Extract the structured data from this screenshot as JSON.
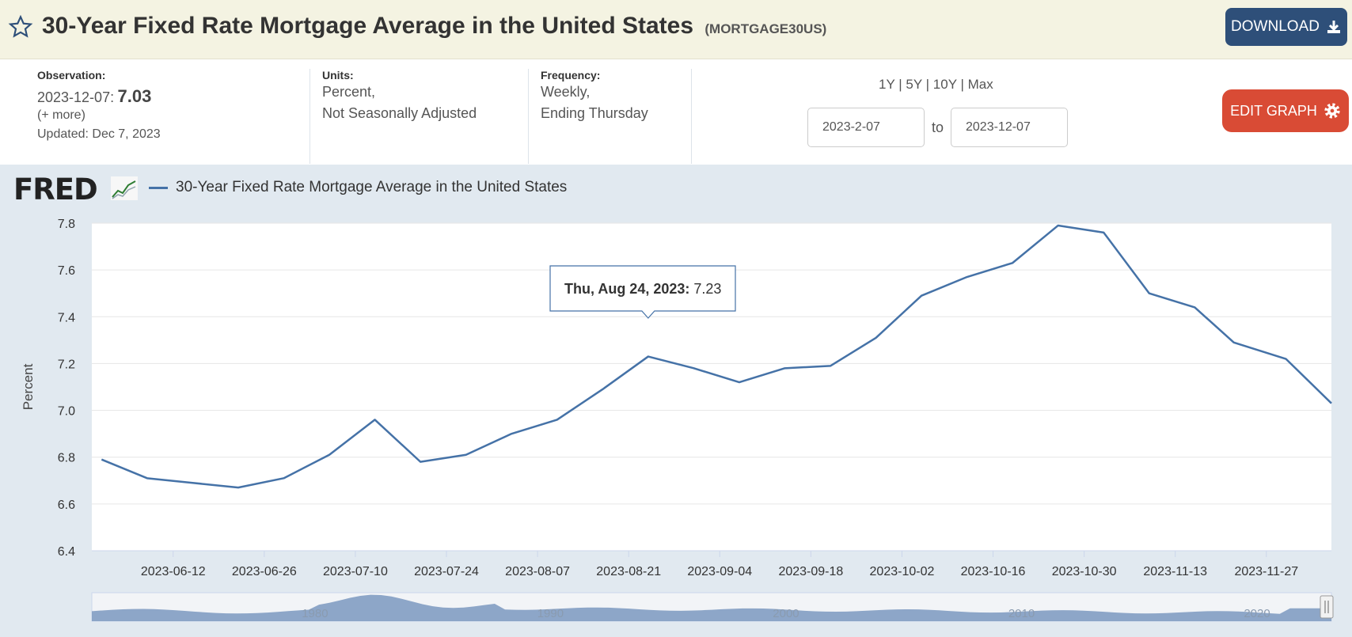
{
  "header": {
    "title": "30-Year Fixed Rate Mortgage Average in the United States",
    "series_id": "(MORTGAGE30US)",
    "download_label": "DOWNLOAD"
  },
  "observation": {
    "label": "Observation:",
    "date": "2023-12-07:",
    "value": "7.03",
    "more": "(+ more)",
    "updated": "Updated: Dec 7, 2023"
  },
  "units": {
    "label": "Units:",
    "line1": "Percent,",
    "line2": "Not Seasonally Adjusted"
  },
  "frequency": {
    "label": "Frequency:",
    "line1": "Weekly,",
    "line2": "Ending Thursday"
  },
  "ranges": {
    "y1": "1Y",
    "y5": "5Y",
    "y10": "10Y",
    "max": "Max",
    "sep": "|"
  },
  "date_range": {
    "start": "2023-2-07",
    "to": "to",
    "end": "2023-12-07"
  },
  "edit_label": "EDIT GRAPH",
  "logo": "FRED",
  "colors": {
    "series": "#4572a7",
    "edit": "#d94b35",
    "download": "#2e4f79"
  },
  "tooltip": {
    "label": "Thu, Aug 24, 2023:",
    "value": "7.23"
  },
  "chart_data": {
    "type": "line",
    "title": "",
    "ylabel": "Percent",
    "ylim": [
      6.4,
      7.8
    ],
    "yticks": [
      "6.4",
      "6.6",
      "6.8",
      "7.0",
      "7.2",
      "7.4",
      "7.6",
      "7.8"
    ],
    "xtick_labels": [
      "2023-06-12",
      "2023-06-26",
      "2023-07-10",
      "2023-07-24",
      "2023-08-07",
      "2023-08-21",
      "2023-09-04",
      "2023-09-18",
      "2023-10-02",
      "2023-10-16",
      "2023-10-30",
      "2023-11-13",
      "2023-11-27"
    ],
    "grid": true,
    "series": [
      {
        "name": "30-Year Fixed Rate Mortgage Average in the United States",
        "x": [
          "2023-06-01",
          "2023-06-08",
          "2023-06-15",
          "2023-06-22",
          "2023-06-29",
          "2023-07-06",
          "2023-07-13",
          "2023-07-20",
          "2023-07-27",
          "2023-08-03",
          "2023-08-10",
          "2023-08-17",
          "2023-08-24",
          "2023-08-31",
          "2023-09-07",
          "2023-09-14",
          "2023-09-21",
          "2023-09-28",
          "2023-10-05",
          "2023-10-12",
          "2023-10-19",
          "2023-10-26",
          "2023-11-02",
          "2023-11-09",
          "2023-11-16",
          "2023-11-22",
          "2023-11-30",
          "2023-12-07"
        ],
        "values": [
          6.79,
          6.71,
          6.69,
          6.67,
          6.71,
          6.81,
          6.96,
          6.78,
          6.81,
          6.9,
          6.96,
          7.09,
          7.23,
          7.18,
          7.12,
          7.18,
          7.19,
          7.31,
          7.49,
          7.57,
          7.63,
          7.79,
          7.76,
          7.5,
          7.44,
          7.29,
          7.22,
          7.03
        ]
      }
    ],
    "navigator_labels": [
      "1980",
      "1990",
      "2000",
      "2010",
      "2020"
    ]
  }
}
